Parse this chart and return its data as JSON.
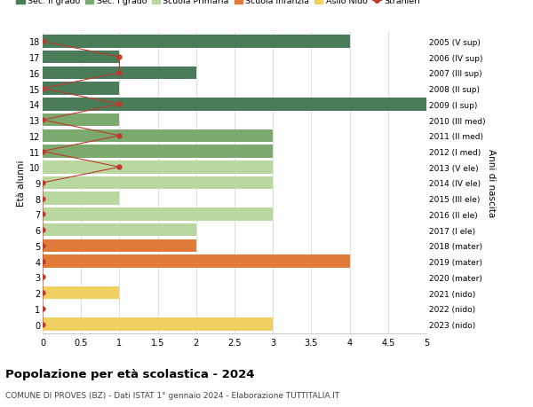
{
  "ages": [
    18,
    17,
    16,
    15,
    14,
    13,
    12,
    11,
    10,
    9,
    8,
    7,
    6,
    5,
    4,
    3,
    2,
    1,
    0
  ],
  "right_labels": [
    "2005 (V sup)",
    "2006 (IV sup)",
    "2007 (III sup)",
    "2008 (II sup)",
    "2009 (I sup)",
    "2010 (III med)",
    "2011 (II med)",
    "2012 (I med)",
    "2013 (V ele)",
    "2014 (IV ele)",
    "2015 (III ele)",
    "2016 (II ele)",
    "2017 (I ele)",
    "2018 (mater)",
    "2019 (mater)",
    "2020 (mater)",
    "2021 (nido)",
    "2022 (nido)",
    "2023 (nido)"
  ],
  "bar_values": [
    4,
    1,
    2,
    1,
    5,
    1,
    3,
    3,
    3,
    3,
    1,
    3,
    2,
    2,
    4,
    0,
    1,
    0,
    3
  ],
  "bar_colors": [
    "#4a7c59",
    "#4a7c59",
    "#4a7c59",
    "#4a7c59",
    "#4a7c59",
    "#7aaa6e",
    "#7aaa6e",
    "#7aaa6e",
    "#b8d8a0",
    "#b8d8a0",
    "#b8d8a0",
    "#b8d8a0",
    "#b8d8a0",
    "#e07b39",
    "#e07b39",
    "#e07b39",
    "#f0d060",
    "#f0d060",
    "#f0d060"
  ],
  "stranieri_x": [
    0,
    1,
    1,
    0,
    1,
    0,
    1,
    0,
    1,
    0,
    0,
    0,
    0,
    0,
    0,
    0,
    0,
    0,
    0
  ],
  "title": "Popolazione per età scolastica - 2024",
  "subtitle": "COMUNE DI PROVES (BZ) - Dati ISTAT 1° gennaio 2024 - Elaborazione TUTTITALIA.IT",
  "xlabel_ticks": [
    0,
    0.5,
    1.0,
    1.5,
    2.0,
    2.5,
    3.0,
    3.5,
    4.0,
    4.5,
    5.0
  ],
  "xlim": [
    0,
    5.0
  ],
  "color_sec2": "#4a7c59",
  "color_sec1": "#7aaa6e",
  "color_primaria": "#b8d8a0",
  "color_infanzia": "#e07b39",
  "color_nido": "#f0d060",
  "color_stranieri": "#c0392b",
  "grid_color": "#dddddd",
  "bg_color": "#ffffff",
  "legend_labels": [
    "Sec. II grado",
    "Sec. I grado",
    "Scuola Primaria",
    "Scuola Infanzia",
    "Asilo Nido",
    "Stranieri"
  ]
}
